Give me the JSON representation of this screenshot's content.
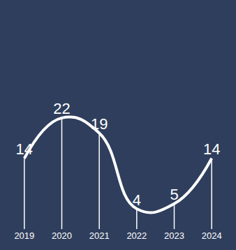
{
  "chart_data": {
    "type": "line",
    "categories": [
      "2019",
      "2020",
      "2021",
      "2022",
      "2023",
      "2024"
    ],
    "values": [
      14,
      22,
      19,
      4,
      5,
      14
    ],
    "color": "#ffffff",
    "ylim": [
      0,
      30
    ],
    "grid": false,
    "data_labels": true,
    "tick_labels": "x",
    "line_style": "spline"
  }
}
